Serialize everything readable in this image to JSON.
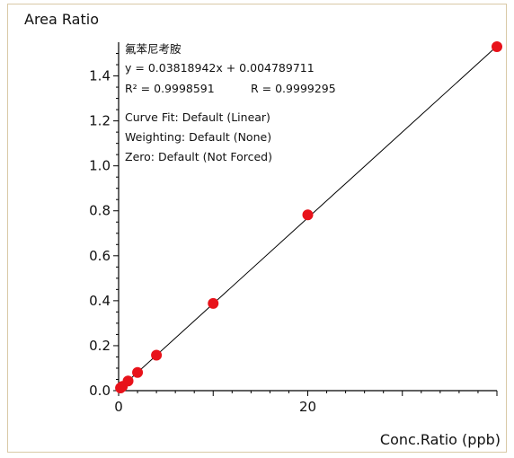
{
  "chart_data": {
    "type": "scatter",
    "title": "",
    "ylabel": "Area Ratio",
    "xlabel": "Conc.Ratio (ppb)",
    "xlim": [
      0,
      40
    ],
    "ylim": [
      0,
      1.55
    ],
    "x_ticks": [
      0,
      20
    ],
    "y_ticks": [
      0.0,
      0.2,
      0.4,
      0.6,
      0.8,
      1.0,
      1.2,
      1.4
    ],
    "y_tick_labels": [
      "0.0",
      "0.2",
      "0.4",
      "0.6",
      "0.8",
      "1.0",
      "1.2",
      "1.4"
    ],
    "x_tick_labels": [
      "0",
      "20"
    ],
    "grid": false,
    "series": [
      {
        "points": [
          {
            "x": 0.2,
            "y": 0.012
          },
          {
            "x": 0.4,
            "y": 0.019
          },
          {
            "x": 1.0,
            "y": 0.043
          },
          {
            "x": 2.0,
            "y": 0.081
          },
          {
            "x": 4.0,
            "y": 0.158
          },
          {
            "x": 10.0,
            "y": 0.388
          },
          {
            "x": 20.0,
            "y": 0.782
          },
          {
            "x": 40.0,
            "y": 1.53
          }
        ],
        "color": "#e8121a"
      }
    ],
    "fit_line": {
      "slope": 0.03818942,
      "intercept": 0.004789711,
      "x_range": [
        0,
        40
      ],
      "color": "#000000"
    },
    "annotation": {
      "compound": "氟苯尼考胺",
      "equation": "y = 0.03818942x + 0.004789711",
      "r2": "R² = 0.9998591",
      "r": "R = 0.9999295",
      "curve_fit": "Curve Fit: Default (Linear)",
      "weighting": "Weighting: Default (None)",
      "zero": "Zero: Default (Not Forced)"
    }
  }
}
